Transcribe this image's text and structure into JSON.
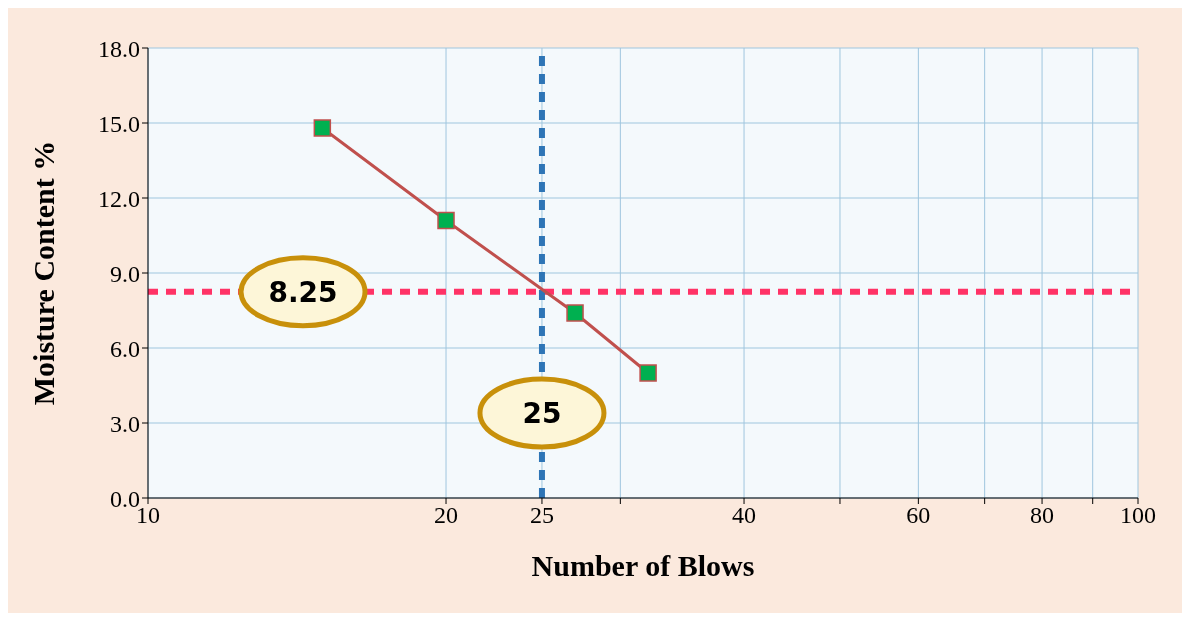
{
  "chart_data": {
    "type": "line",
    "xlabel": "Number of Blows",
    "ylabel": "Moisture Content %",
    "x": [
      15,
      20,
      27,
      32
    ],
    "series": [
      {
        "color": "#c0504d",
        "values": [
          14.8,
          11.1,
          7.4,
          5.0
        ]
      }
    ],
    "log": "x",
    "xlim": [
      10,
      100
    ],
    "xticks": [
      10,
      20,
      25,
      {
        "value": 30,
        "label": null
      },
      40,
      {
        "value": 50,
        "label": null
      },
      60,
      {
        "value": 70,
        "label": null
      },
      80,
      {
        "value": 90,
        "label": null
      },
      100
    ],
    "ylim": [
      0,
      18
    ],
    "yticks": [
      {
        "value": 0,
        "label": "0.0"
      },
      {
        "value": 3,
        "label": "3.0"
      },
      {
        "value": 6,
        "label": "6.0"
      },
      {
        "value": 9,
        "label": "9.0"
      },
      {
        "value": 12,
        "label": "12.0"
      },
      {
        "value": 15,
        "label": "15.0"
      },
      {
        "value": 18,
        "label": "18.0"
      }
    ],
    "ref_lines": [
      {
        "axis": "y",
        "value": 8.25,
        "label": "8.25",
        "color": "#ff3366",
        "line_style": "dashed"
      },
      {
        "axis": "x",
        "value": 25,
        "label": "25",
        "color": "#2e75b6",
        "line_style": "dashed"
      }
    ],
    "grid": true,
    "marker": "square",
    "line_style": "solid"
  }
}
